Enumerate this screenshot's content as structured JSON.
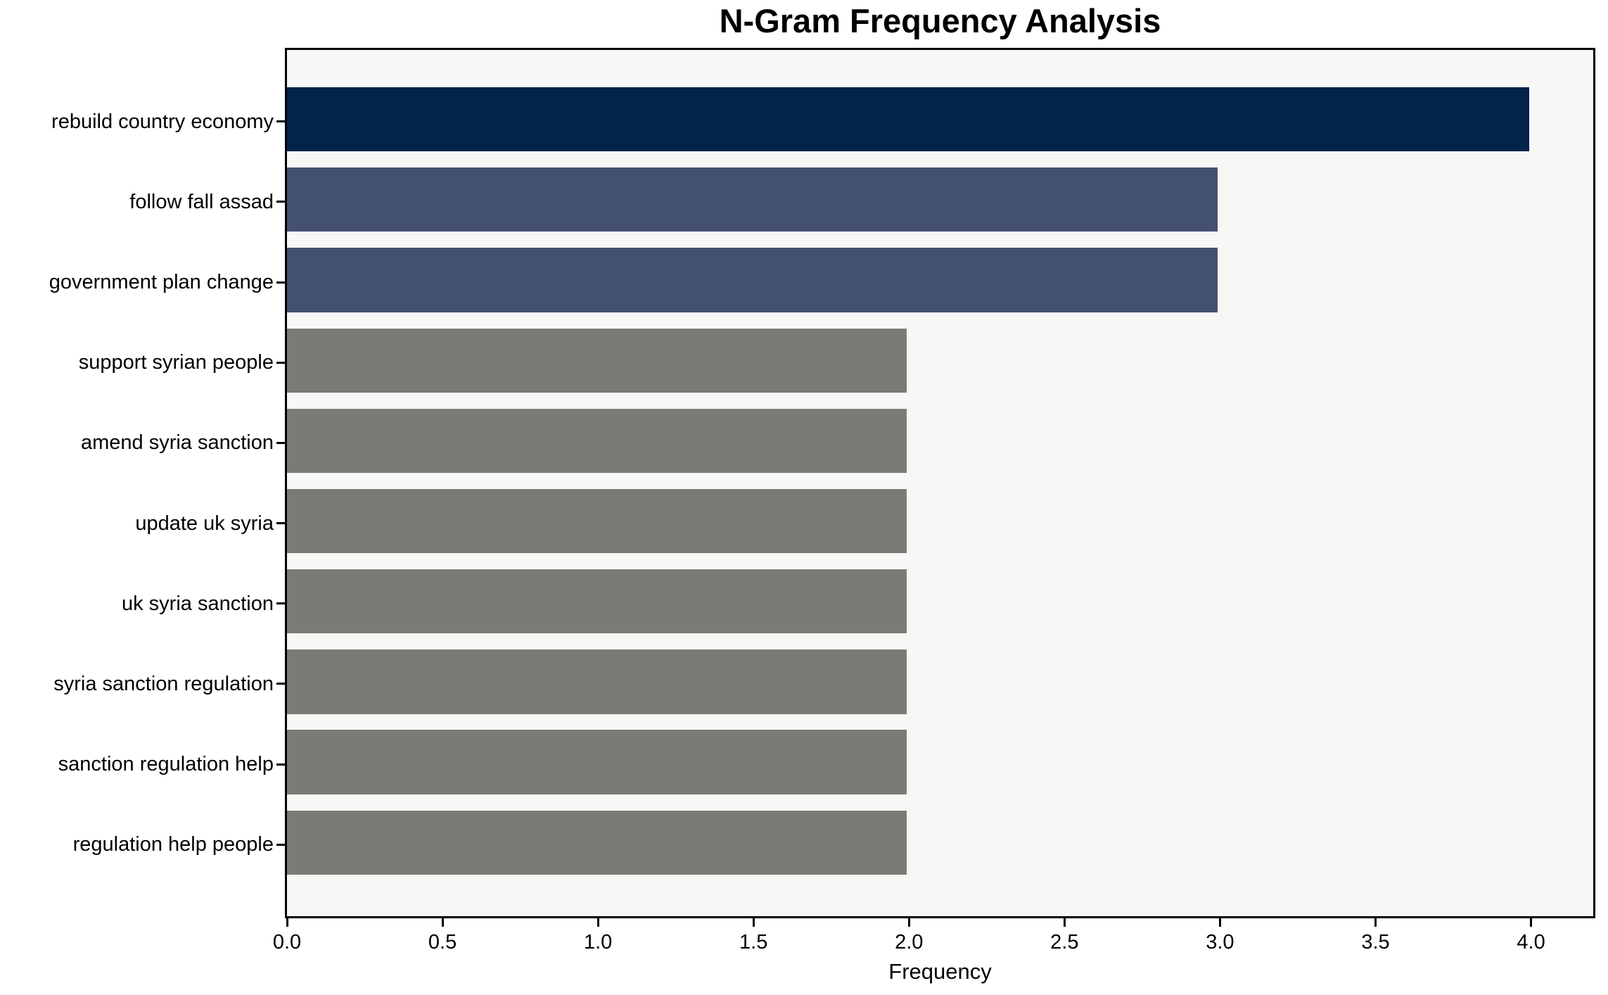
{
  "title": "N-Gram Frequency Analysis",
  "chart_data": {
    "type": "bar",
    "orientation": "horizontal",
    "title": "N-Gram Frequency Analysis",
    "xlabel": "Frequency",
    "ylabel": "",
    "categories": [
      "rebuild country economy",
      "follow fall assad",
      "government plan change",
      "support syrian people",
      "amend syria sanction",
      "update uk syria",
      "uk syria sanction",
      "syria sanction regulation",
      "sanction regulation help",
      "regulation help people"
    ],
    "values": [
      4,
      3,
      3,
      2,
      2,
      2,
      2,
      2,
      2,
      2
    ],
    "bar_colors": [
      "#02234a",
      "#445070",
      "#445070",
      "#7b7a75",
      "#7b7a75",
      "#7b7a75",
      "#7b7a75",
      "#7b7a75",
      "#7b7a75",
      "#7b7a75"
    ],
    "xtick_labels": [
      "0.0",
      "0.5",
      "1.0",
      "1.5",
      "2.0",
      "2.5",
      "3.0",
      "3.5",
      "4.0"
    ],
    "xtick_values": [
      0.0,
      0.5,
      1.0,
      1.5,
      2.0,
      2.5,
      3.0,
      3.5,
      4.0
    ],
    "xlim": [
      0,
      4.2
    ],
    "grid": false,
    "legend_position": "none",
    "plot_bg": "#f7f7f5",
    "figure_bg": "#ffffff",
    "spine_color": "#000000",
    "text_color": "#000000"
  }
}
